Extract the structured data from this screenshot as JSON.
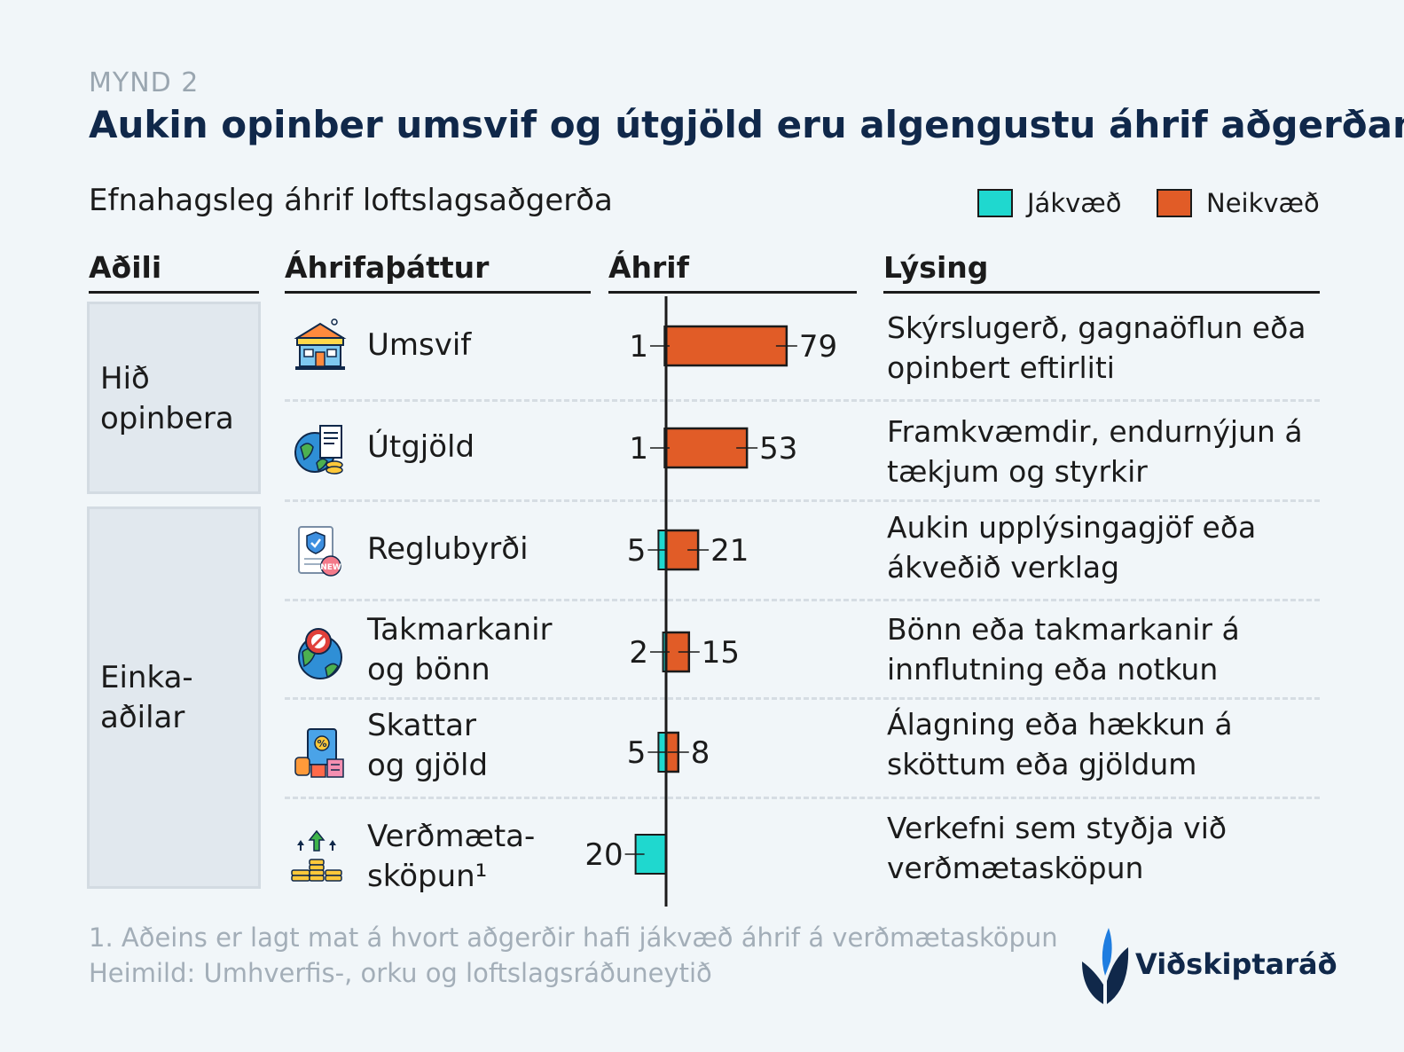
{
  "figure_label": "MYND 2",
  "title": "Aukin opinber umsvif og útgjöld eru algengustu áhrif aðgerðanna",
  "subtitle": "Efnahagsleg áhrif loftslagsaðgerða",
  "legend": [
    {
      "label": "Jákvæð",
      "color": "#1fd8cf"
    },
    {
      "label": "Neikvæð",
      "color": "#e15c27"
    }
  ],
  "columns": {
    "actor": "Aðili",
    "factor": "Áhrifaþáttur",
    "impact": "Áhrif",
    "description": "Lýsing"
  },
  "groups": [
    {
      "label": "Hið\nopinbera"
    },
    {
      "label": "Einka-\naðilar"
    }
  ],
  "rows": [
    {
      "factor": "Umsvif",
      "icon": "government-building-icon",
      "description": "Skýrslugerð, gagnaöflun eða\nopinbert eftirliti"
    },
    {
      "factor": "Útgjöld",
      "icon": "globe-invoice-icon",
      "description": "Framkvæmdir, endurnýjun á\ntækjum og styrkir"
    },
    {
      "factor": "Reglubyrði",
      "icon": "document-new-icon",
      "description": "Aukin upplýsingagjöf eða\nákveðið verklag"
    },
    {
      "factor": "Takmarkanir\nog bönn",
      "icon": "globe-ban-icon",
      "description": "Bönn eða takmarkanir á\ninnflutning eða notkun"
    },
    {
      "factor": "Skattar\nog gjöld",
      "icon": "tax-percent-icon",
      "description": "Álagning eða hækkun á\nsköttum eða gjöldum"
    },
    {
      "factor": "Verðmæta-\nsköpun¹",
      "icon": "coins-growth-icon",
      "description": "Verkefni sem styðja við\nverðmætasköpun"
    }
  ],
  "chart_data": {
    "type": "bar",
    "orientation": "horizontal",
    "stacked": "diverging",
    "categories": [
      "Umsvif",
      "Útgjöld",
      "Reglubyrði",
      "Takmarkanir og bönn",
      "Skattar og gjöld",
      "Verðmætasköpun"
    ],
    "series": [
      {
        "name": "Jákvæð",
        "values": [
          1,
          1,
          5,
          2,
          5,
          20
        ],
        "color": "#1fd8cf"
      },
      {
        "name": "Neikvæð",
        "values": [
          79,
          53,
          21,
          15,
          8,
          null
        ],
        "color": "#e15c27"
      }
    ],
    "data_labels": [
      {
        "positive": "1",
        "negative": "79"
      },
      {
        "positive": "1",
        "negative": "53"
      },
      {
        "positive": "5",
        "negative": "21"
      },
      {
        "positive": "2",
        "negative": "15"
      },
      {
        "positive": "5",
        "negative": "8"
      },
      {
        "positive": "20",
        "negative": ""
      }
    ],
    "xlabel": "Áhrif",
    "grid": false,
    "legend": "top-right"
  },
  "footnote": "1. Aðeins er lagt mat á hvort aðgerðir hafi jákvæð áhrif á verðmætasköpun",
  "source": "Heimild: Umhverfis-, orku og loftslagsráðuneytið",
  "brand": "Viðskiptaráð"
}
